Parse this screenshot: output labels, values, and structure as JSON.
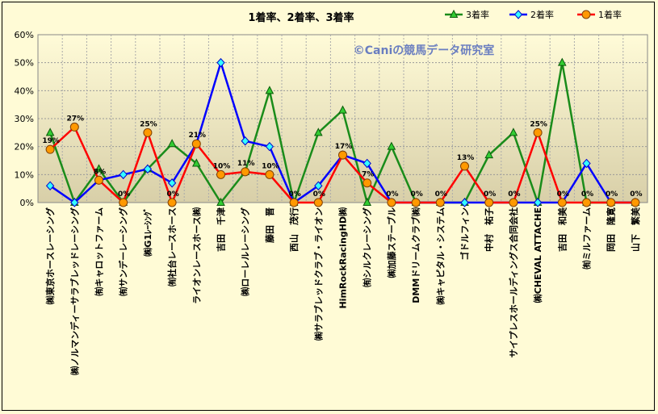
{
  "chart_data": {
    "type": "line",
    "title": "1着率、2着率、3着率",
    "watermark": "©Caniの競馬データ研究室",
    "ylim": [
      0,
      60
    ],
    "yticks": [
      "0%",
      "10%",
      "20%",
      "30%",
      "40%",
      "50%",
      "60%"
    ],
    "grid": "horizontal dotted",
    "legend_position": "top-right",
    "categories": [
      "㈱東京ホースレーシング",
      "㈱ノルマンディーサラブレッドレーシング",
      "㈲キャロットファーム",
      "㈲サンデーレーシング",
      "㈱G1ﾚｰｼﾝｸﾞ",
      "㈲社台レースホース",
      "ライオンレースホース㈱",
      "吉田　千津",
      "㈱ローレルレーシング",
      "藤田　晋",
      "西山　茂行",
      "㈱サラブレッドクラブ・ライオン",
      "HimRockRacingHD㈱",
      "㈲シルクレーシング",
      "㈱加藤ステーブル",
      "DMMドリームクラブ㈱",
      "㈱キャピタル・システム",
      "ゴドルフィン",
      "中村　祐子",
      "サイプレスホールディングス合同会社",
      "㈱CHEVAL ATTACHE",
      "吉田　和美",
      "㈲ミルファーム",
      "岡田　隆寛",
      "山下　繁美"
    ],
    "series": [
      {
        "name": "3着率",
        "color": "#1a8c1a",
        "marker": "triangle",
        "values": [
          25,
          0,
          12,
          0,
          12,
          21,
          14,
          0,
          11,
          40,
          0,
          25,
          33,
          0,
          20,
          0,
          0,
          0,
          17,
          25,
          0,
          50,
          0,
          0,
          0
        ]
      },
      {
        "name": "2着率",
        "color": "#0000ff",
        "marker": "diamond",
        "values": [
          6,
          0,
          8,
          10,
          12,
          7,
          21,
          50,
          22,
          20,
          0,
          6,
          17,
          14,
          0,
          0,
          0,
          0,
          0,
          0,
          0,
          0,
          14,
          0,
          0
        ]
      },
      {
        "name": "1着率",
        "color": "#ff0000",
        "marker": "circle",
        "values": [
          19,
          27,
          8,
          0,
          25,
          0,
          21,
          10,
          11,
          10,
          0,
          0,
          17,
          7,
          0,
          0,
          0,
          13,
          0,
          0,
          25,
          0,
          0,
          0,
          0
        ],
        "labels": [
          "19%",
          "27%",
          "8%",
          "0%",
          "25%",
          "0%",
          "21%",
          "10%",
          "11%",
          "10%",
          "0%",
          "0%",
          "17%",
          "7%",
          "0%",
          "0%",
          "0%",
          "13%",
          "0%",
          "0%",
          "25%",
          "0%",
          "0%",
          "0%",
          "0%"
        ]
      }
    ]
  }
}
